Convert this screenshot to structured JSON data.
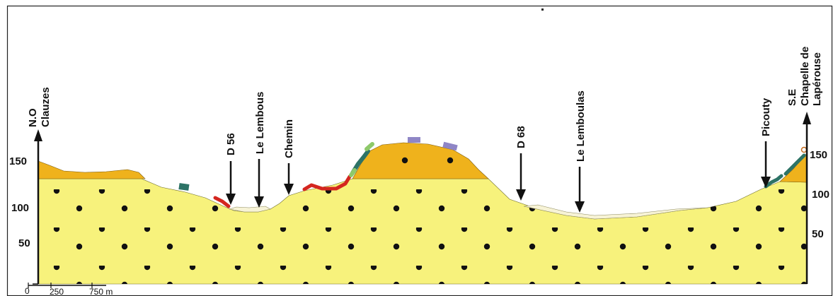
{
  "left_axis": {
    "orientation": "N.O",
    "place": "Clauzes",
    "ticks": [
      "150",
      "100",
      "50"
    ]
  },
  "right_axis": {
    "orientation": "S.E",
    "place_line1": "Chapelle de",
    "place_line2": "Lapérouse",
    "ticks": [
      "150",
      "100",
      "50"
    ]
  },
  "markers": [
    {
      "label": "D 56"
    },
    {
      "label": "Le Lembous"
    },
    {
      "label": "Chemin"
    },
    {
      "label": "D 68"
    },
    {
      "label": "Le Lemboulas"
    },
    {
      "label": "Picouty"
    }
  ],
  "scale_bar": {
    "zero": "0",
    "mid": "250",
    "end": "750 m"
  },
  "colors": {
    "bedrock": "#f7f27c",
    "caprock": "#efb21c",
    "alluvium": "#f7f3d6",
    "dots": "#111111",
    "red_outcrop": "#d4261f",
    "teal_outcrop": "#2d7366",
    "green_outcrop": "#8ec96a",
    "purple_outcrop": "#8f86c6"
  }
}
